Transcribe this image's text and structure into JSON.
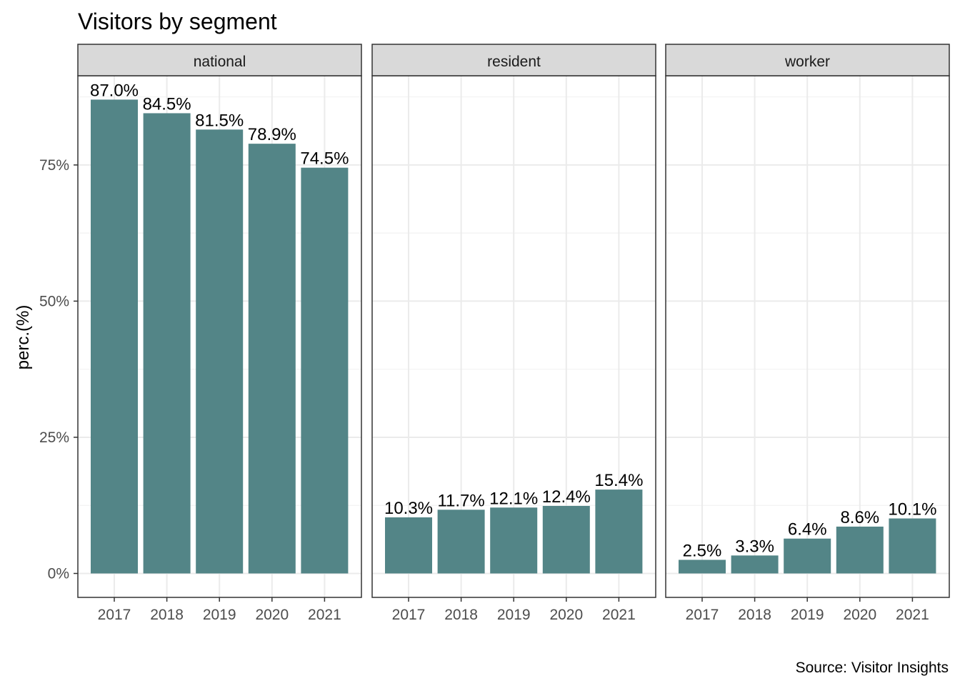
{
  "chart_data": {
    "type": "bar",
    "title": "Visitors by segment",
    "ylabel": "perc.(%)",
    "caption": "Source: Visitor Insights",
    "categories": [
      "2017",
      "2018",
      "2019",
      "2020",
      "2021"
    ],
    "ylim": [
      0,
      0.915
    ],
    "yticks": [
      0,
      0.25,
      0.5,
      0.75
    ],
    "ytick_labels": [
      "0%",
      "25%",
      "50%",
      "75%"
    ],
    "grid": true,
    "bar_color": "#538587",
    "facets": [
      {
        "name": "national",
        "values": [
          0.87,
          0.845,
          0.815,
          0.789,
          0.745
        ],
        "labels": [
          "87.0%",
          "84.5%",
          "81.5%",
          "78.9%",
          "74.5%"
        ]
      },
      {
        "name": "resident",
        "values": [
          0.103,
          0.117,
          0.121,
          0.124,
          0.154
        ],
        "labels": [
          "10.3%",
          "11.7%",
          "12.1%",
          "12.4%",
          "15.4%"
        ]
      },
      {
        "name": "worker",
        "values": [
          0.025,
          0.033,
          0.064,
          0.086,
          0.101
        ],
        "labels": [
          "2.5%",
          "3.3%",
          "6.4%",
          "8.6%",
          "10.1%"
        ]
      }
    ]
  }
}
